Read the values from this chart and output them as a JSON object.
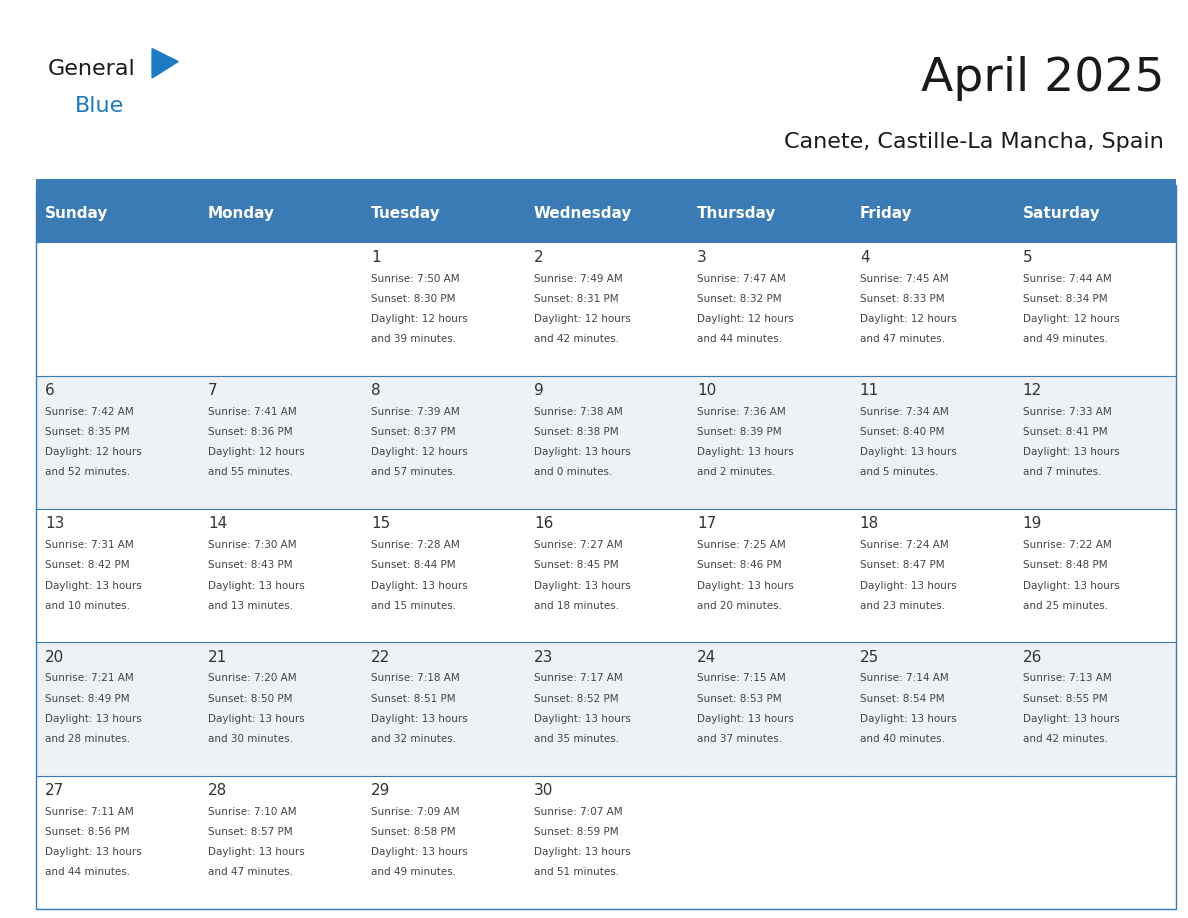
{
  "title": "April 2025",
  "subtitle": "Canete, Castille-La Mancha, Spain",
  "header_bg_color": "#3a7ab5",
  "header_text_color": "#ffffff",
  "row_bg_colors": [
    "#ffffff",
    "#eef2f7"
  ],
  "day_headers": [
    "Sunday",
    "Monday",
    "Tuesday",
    "Wednesday",
    "Thursday",
    "Friday",
    "Saturday"
  ],
  "weeks": [
    [
      {
        "day": "",
        "info": ""
      },
      {
        "day": "",
        "info": ""
      },
      {
        "day": "1",
        "info": "Sunrise: 7:50 AM\nSunset: 8:30 PM\nDaylight: 12 hours\nand 39 minutes."
      },
      {
        "day": "2",
        "info": "Sunrise: 7:49 AM\nSunset: 8:31 PM\nDaylight: 12 hours\nand 42 minutes."
      },
      {
        "day": "3",
        "info": "Sunrise: 7:47 AM\nSunset: 8:32 PM\nDaylight: 12 hours\nand 44 minutes."
      },
      {
        "day": "4",
        "info": "Sunrise: 7:45 AM\nSunset: 8:33 PM\nDaylight: 12 hours\nand 47 minutes."
      },
      {
        "day": "5",
        "info": "Sunrise: 7:44 AM\nSunset: 8:34 PM\nDaylight: 12 hours\nand 49 minutes."
      }
    ],
    [
      {
        "day": "6",
        "info": "Sunrise: 7:42 AM\nSunset: 8:35 PM\nDaylight: 12 hours\nand 52 minutes."
      },
      {
        "day": "7",
        "info": "Sunrise: 7:41 AM\nSunset: 8:36 PM\nDaylight: 12 hours\nand 55 minutes."
      },
      {
        "day": "8",
        "info": "Sunrise: 7:39 AM\nSunset: 8:37 PM\nDaylight: 12 hours\nand 57 minutes."
      },
      {
        "day": "9",
        "info": "Sunrise: 7:38 AM\nSunset: 8:38 PM\nDaylight: 13 hours\nand 0 minutes."
      },
      {
        "day": "10",
        "info": "Sunrise: 7:36 AM\nSunset: 8:39 PM\nDaylight: 13 hours\nand 2 minutes."
      },
      {
        "day": "11",
        "info": "Sunrise: 7:34 AM\nSunset: 8:40 PM\nDaylight: 13 hours\nand 5 minutes."
      },
      {
        "day": "12",
        "info": "Sunrise: 7:33 AM\nSunset: 8:41 PM\nDaylight: 13 hours\nand 7 minutes."
      }
    ],
    [
      {
        "day": "13",
        "info": "Sunrise: 7:31 AM\nSunset: 8:42 PM\nDaylight: 13 hours\nand 10 minutes."
      },
      {
        "day": "14",
        "info": "Sunrise: 7:30 AM\nSunset: 8:43 PM\nDaylight: 13 hours\nand 13 minutes."
      },
      {
        "day": "15",
        "info": "Sunrise: 7:28 AM\nSunset: 8:44 PM\nDaylight: 13 hours\nand 15 minutes."
      },
      {
        "day": "16",
        "info": "Sunrise: 7:27 AM\nSunset: 8:45 PM\nDaylight: 13 hours\nand 18 minutes."
      },
      {
        "day": "17",
        "info": "Sunrise: 7:25 AM\nSunset: 8:46 PM\nDaylight: 13 hours\nand 20 minutes."
      },
      {
        "day": "18",
        "info": "Sunrise: 7:24 AM\nSunset: 8:47 PM\nDaylight: 13 hours\nand 23 minutes."
      },
      {
        "day": "19",
        "info": "Sunrise: 7:22 AM\nSunset: 8:48 PM\nDaylight: 13 hours\nand 25 minutes."
      }
    ],
    [
      {
        "day": "20",
        "info": "Sunrise: 7:21 AM\nSunset: 8:49 PM\nDaylight: 13 hours\nand 28 minutes."
      },
      {
        "day": "21",
        "info": "Sunrise: 7:20 AM\nSunset: 8:50 PM\nDaylight: 13 hours\nand 30 minutes."
      },
      {
        "day": "22",
        "info": "Sunrise: 7:18 AM\nSunset: 8:51 PM\nDaylight: 13 hours\nand 32 minutes."
      },
      {
        "day": "23",
        "info": "Sunrise: 7:17 AM\nSunset: 8:52 PM\nDaylight: 13 hours\nand 35 minutes."
      },
      {
        "day": "24",
        "info": "Sunrise: 7:15 AM\nSunset: 8:53 PM\nDaylight: 13 hours\nand 37 minutes."
      },
      {
        "day": "25",
        "info": "Sunrise: 7:14 AM\nSunset: 8:54 PM\nDaylight: 13 hours\nand 40 minutes."
      },
      {
        "day": "26",
        "info": "Sunrise: 7:13 AM\nSunset: 8:55 PM\nDaylight: 13 hours\nand 42 minutes."
      }
    ],
    [
      {
        "day": "27",
        "info": "Sunrise: 7:11 AM\nSunset: 8:56 PM\nDaylight: 13 hours\nand 44 minutes."
      },
      {
        "day": "28",
        "info": "Sunrise: 7:10 AM\nSunset: 8:57 PM\nDaylight: 13 hours\nand 47 minutes."
      },
      {
        "day": "29",
        "info": "Sunrise: 7:09 AM\nSunset: 8:58 PM\nDaylight: 13 hours\nand 49 minutes."
      },
      {
        "day": "30",
        "info": "Sunrise: 7:07 AM\nSunset: 8:59 PM\nDaylight: 13 hours\nand 51 minutes."
      },
      {
        "day": "",
        "info": ""
      },
      {
        "day": "",
        "info": ""
      },
      {
        "day": "",
        "info": ""
      }
    ]
  ],
  "logo_color_general": "#1a1a1a",
  "logo_color_blue": "#1a7bc4",
  "logo_triangle_color": "#1a7bc4",
  "border_color": "#3a7ab5",
  "title_color": "#1a1a1a",
  "subtitle_color": "#1a1a1a",
  "day_num_color": "#333333",
  "info_color": "#444444",
  "fig_width": 11.88,
  "fig_height": 9.18,
  "dpi": 100
}
